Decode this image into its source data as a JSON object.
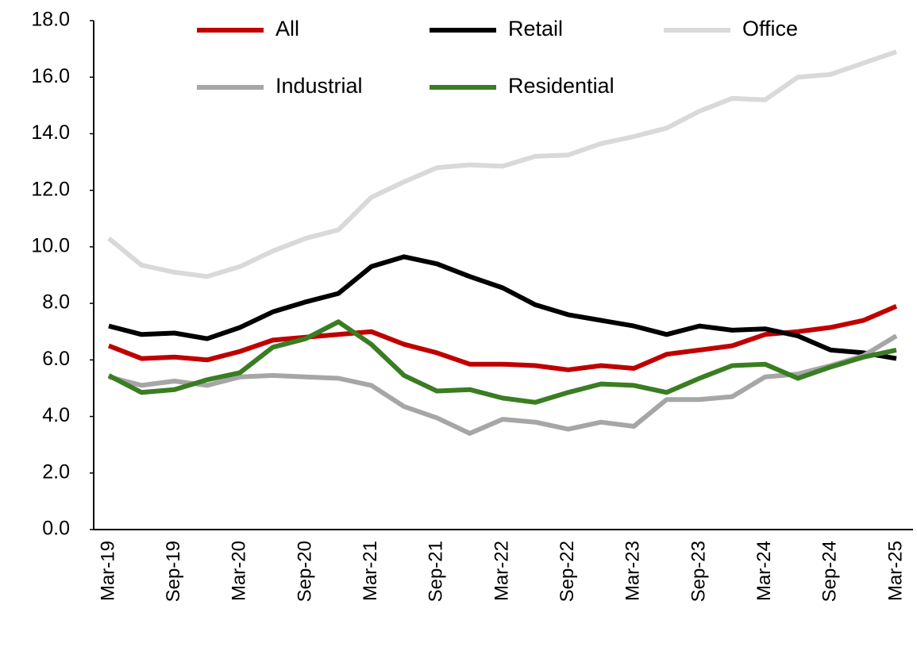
{
  "chart_data": {
    "type": "line",
    "categories": [
      "Mar-19",
      null,
      "Sep-19",
      null,
      "Mar-20",
      null,
      "Sep-20",
      null,
      "Mar-21",
      null,
      "Sep-21",
      null,
      "Mar-22",
      null,
      "Sep-22",
      null,
      "Mar-23",
      null,
      "Sep-23",
      null,
      "Mar-24",
      null,
      "Sep-24",
      null,
      "Mar-25"
    ],
    "series": [
      {
        "name": "All",
        "color": "#c00000",
        "values": [
          6.5,
          6.05,
          6.1,
          6.0,
          6.3,
          6.7,
          6.8,
          6.9,
          7.0,
          6.55,
          6.25,
          5.85,
          5.85,
          5.8,
          5.65,
          5.8,
          5.7,
          6.2,
          6.35,
          6.5,
          6.9,
          7.0,
          7.15,
          7.4,
          7.9
        ]
      },
      {
        "name": "Retail",
        "color": "#000000",
        "values": [
          7.2,
          6.9,
          6.95,
          6.75,
          7.15,
          7.7,
          8.05,
          8.35,
          9.3,
          9.65,
          9.4,
          8.95,
          8.55,
          7.95,
          7.6,
          7.4,
          7.2,
          6.9,
          7.2,
          7.05,
          7.1,
          6.85,
          6.35,
          6.25,
          6.05
        ]
      },
      {
        "name": "Office",
        "color": "#d9d9d9",
        "values": [
          10.3,
          9.35,
          9.1,
          8.95,
          9.3,
          9.85,
          10.3,
          10.6,
          11.75,
          12.3,
          12.8,
          12.9,
          12.85,
          13.2,
          13.25,
          13.65,
          13.9,
          14.2,
          14.8,
          15.25,
          15.2,
          16.0,
          16.1,
          16.5,
          16.9
        ]
      },
      {
        "name": "Industrial",
        "color": "#a6a6a6",
        "values": [
          5.4,
          5.1,
          5.25,
          5.1,
          5.4,
          5.45,
          5.4,
          5.35,
          5.1,
          4.35,
          3.95,
          3.4,
          3.9,
          3.8,
          3.55,
          3.8,
          3.65,
          4.6,
          4.6,
          4.7,
          5.4,
          5.5,
          5.8,
          6.15,
          6.85
        ]
      },
      {
        "name": "Residential",
        "color": "#3a7d22",
        "values": [
          5.45,
          4.85,
          4.95,
          5.3,
          5.55,
          6.45,
          6.75,
          7.35,
          6.55,
          5.45,
          4.9,
          4.95,
          4.65,
          4.5,
          4.85,
          5.15,
          5.1,
          4.85,
          5.35,
          5.8,
          5.85,
          5.35,
          5.75,
          6.1,
          6.35
        ]
      }
    ],
    "ylim": [
      0,
      18
    ],
    "yticks": [
      {
        "value": 0,
        "label": "0.0"
      },
      {
        "value": 2,
        "label": "2.0"
      },
      {
        "value": 4,
        "label": "4.0"
      },
      {
        "value": 6,
        "label": "6.0"
      },
      {
        "value": 8,
        "label": "8.0"
      },
      {
        "value": 10,
        "label": "10.0"
      },
      {
        "value": 12,
        "label": "12.0"
      },
      {
        "value": 14,
        "label": "14.0"
      },
      {
        "value": 16,
        "label": "16.0"
      },
      {
        "value": 18,
        "label": "18.0"
      }
    ],
    "grid": false,
    "legend": "top"
  }
}
